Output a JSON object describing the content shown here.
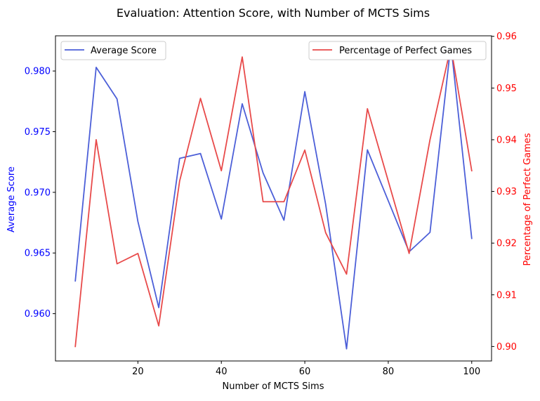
{
  "chart_data": {
    "type": "line",
    "title": "Evaluation: Attention Score, with Number of MCTS Sims",
    "xlabel": "Number of MCTS Sims",
    "xlim": [
      0.25,
      104.75
    ],
    "xticks": [
      20,
      40,
      60,
      80,
      100
    ],
    "x": [
      5,
      10,
      15,
      20,
      25,
      30,
      35,
      40,
      45,
      50,
      55,
      60,
      65,
      70,
      75,
      80,
      85,
      90,
      95,
      100
    ],
    "y_left": {
      "label": "Average Score",
      "color": "#0000ff",
      "lim": [
        0.9561,
        0.9829
      ],
      "ticks": [
        0.96,
        0.965,
        0.97,
        0.975,
        0.98
      ],
      "tick_labels": [
        "0.960",
        "0.965",
        "0.970",
        "0.975",
        "0.980"
      ]
    },
    "y_right": {
      "label": "Percentage of Perfect Games",
      "color": "#ff0000",
      "lim": [
        0.8972,
        0.9601
      ],
      "ticks": [
        0.9,
        0.91,
        0.92,
        0.93,
        0.94,
        0.95,
        0.96
      ],
      "tick_labels": [
        "0.90",
        "0.91",
        "0.92",
        "0.93",
        "0.94",
        "0.95",
        "0.96"
      ]
    },
    "series": [
      {
        "name": "Average Score",
        "axis": "left",
        "color": "#4c5fd8",
        "values": [
          0.9627,
          0.9803,
          0.9777,
          0.9676,
          0.9605,
          0.9728,
          0.9732,
          0.9678,
          0.9773,
          0.9716,
          0.9677,
          0.9783,
          0.969,
          0.9571,
          0.9735,
          0.9693,
          0.9651,
          0.9667,
          0.9822,
          0.9662
        ]
      },
      {
        "name": "Percentage of Perfect Games",
        "axis": "right",
        "color": "#e84a4a",
        "values": [
          0.9,
          0.94,
          0.916,
          0.918,
          0.904,
          0.932,
          0.948,
          0.934,
          0.956,
          0.928,
          0.928,
          0.938,
          0.922,
          0.914,
          0.946,
          0.932,
          0.918,
          0.94,
          0.958,
          0.934
        ]
      }
    ],
    "legends": [
      {
        "position": "upper-left",
        "entries": [
          "Average Score"
        ]
      },
      {
        "position": "upper-right",
        "entries": [
          "Percentage of Perfect Games"
        ]
      }
    ],
    "grid": false
  }
}
